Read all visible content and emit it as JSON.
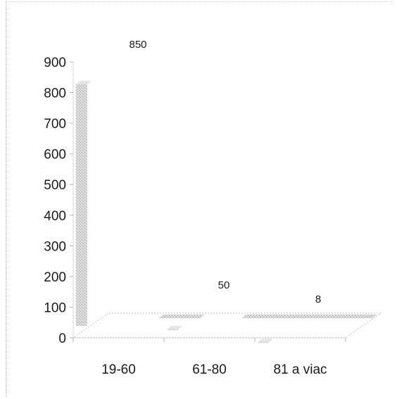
{
  "chart_data": {
    "type": "bar",
    "style": "3d-column",
    "title": "",
    "xlabel": "",
    "ylabel": "",
    "categories": [
      "19-60",
      "61-80",
      "81 a viac"
    ],
    "values": [
      850,
      50,
      8
    ],
    "data_labels": [
      "850",
      "50",
      "8"
    ],
    "ylim": [
      0,
      900
    ],
    "yticks": [
      0,
      100,
      200,
      300,
      400,
      500,
      600,
      700,
      800,
      900
    ],
    "grid": false,
    "legend": "none",
    "bar_color": "#c8c8c8"
  }
}
